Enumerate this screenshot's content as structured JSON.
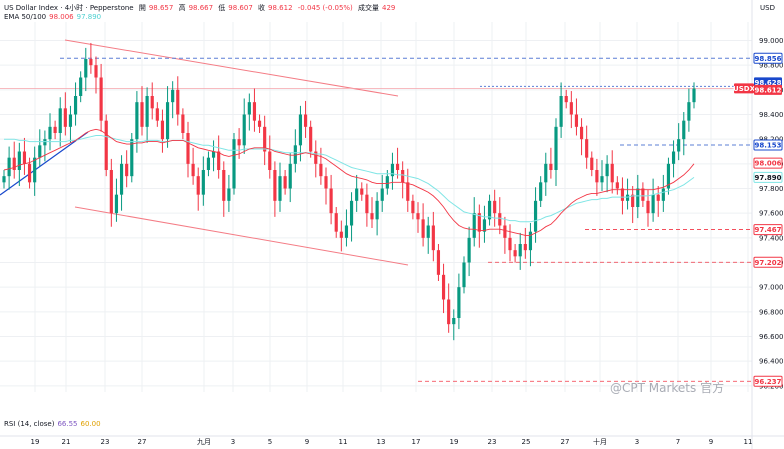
{
  "header": {
    "symbol": "US Dollar Index · 4小时 · Pepperstone",
    "o_label": "開",
    "o": "98.657",
    "h_label": "高",
    "h": "98.667",
    "l_label": "低",
    "l": "98.607",
    "c_label": "收",
    "c": "98.612",
    "chg": "-0.045 (-0.05%)",
    "vol_label": "成交量",
    "vol": "429",
    "ema_label": "EMA 50/100",
    "ema50": "98.006",
    "ema100": "97.890"
  },
  "rsi": {
    "label": "RSI (14, close)",
    "v1": "66.55",
    "v2": "60.00"
  },
  "currency": "USD",
  "watermark": "@CPT Markets 官方",
  "colors": {
    "up": "#089981",
    "down": "#f23645",
    "ema50": "#f23645",
    "ema100": "#7fe5e5",
    "blue": "#1848cc",
    "grid": "#eef0f3"
  },
  "chart_data": {
    "type": "candlestick",
    "ylim": [
      96.15,
      99.15
    ],
    "y_ticks": [
      "99.000",
      "98.800",
      "98.600",
      "98.400",
      "98.200",
      "98.000",
      "97.800",
      "97.600",
      "97.400",
      "97.200",
      "97.000",
      "96.800",
      "96.600",
      "96.400",
      "96.200"
    ],
    "y_tick_values": [
      99.0,
      98.8,
      98.6,
      98.4,
      98.2,
      98.0,
      97.8,
      97.6,
      97.4,
      97.2,
      97.0,
      96.8,
      96.6,
      96.4,
      96.2
    ],
    "x_ticks": [
      "19",
      "21",
      "23",
      "27",
      "九月",
      "3",
      "5",
      "9",
      "11",
      "13",
      "17",
      "19",
      "23",
      "25",
      "27",
      "十月",
      "3",
      "7",
      "9",
      "11"
    ],
    "price_tags": [
      {
        "text": "98.856",
        "value": 98.856,
        "style": "blue-dash"
      },
      {
        "text": "98.628",
        "value": 98.628,
        "style": "blue-fill"
      },
      {
        "text": "USDX",
        "value": 98.612,
        "style": "symbol"
      },
      {
        "text": "98.612",
        "value": 98.612,
        "style": "red-fill"
      },
      {
        "text": "98.153",
        "value": 98.153,
        "style": "blue-dash"
      },
      {
        "text": "98.006",
        "value": 98.006,
        "style": "ema-red"
      },
      {
        "text": "97.890",
        "value": 97.89,
        "style": "ema-cyan"
      },
      {
        "text": "97.467",
        "value": 97.467,
        "style": "red-dash"
      },
      {
        "text": "97.202",
        "value": 97.202,
        "style": "red-dash"
      },
      {
        "text": "96.237",
        "value": 96.237,
        "style": "red-dash"
      }
    ],
    "candles_close": [
      97.9,
      98.05,
      97.95,
      98.1,
      98.0,
      97.85,
      98.05,
      98.15,
      98.2,
      98.3,
      98.25,
      98.45,
      98.3,
      98.4,
      98.55,
      98.7,
      98.85,
      98.8,
      98.7,
      98.35,
      97.95,
      97.6,
      97.75,
      98.0,
      97.9,
      98.2,
      98.5,
      98.3,
      98.55,
      98.45,
      98.35,
      98.2,
      98.5,
      98.6,
      98.4,
      98.25,
      98.0,
      97.9,
      97.75,
      97.95,
      98.05,
      98.1,
      97.95,
      97.7,
      97.8,
      98.2,
      98.15,
      98.4,
      98.5,
      98.35,
      98.3,
      98.1,
      97.95,
      97.7,
      97.9,
      97.8,
      98.0,
      98.15,
      98.4,
      98.3,
      98.1,
      98.0,
      97.9,
      97.8,
      97.6,
      97.45,
      97.4,
      97.5,
      97.7,
      97.8,
      97.75,
      97.6,
      97.55,
      97.7,
      97.8,
      97.9,
      98.0,
      97.95,
      97.85,
      97.7,
      97.6,
      97.55,
      97.4,
      97.5,
      97.3,
      97.1,
      96.9,
      96.7,
      96.75,
      97.0,
      97.2,
      97.4,
      97.6,
      97.45,
      97.55,
      97.7,
      97.6,
      97.5,
      97.4,
      97.3,
      97.25,
      97.35,
      97.3,
      97.45,
      97.7,
      97.85,
      98.0,
      97.95,
      98.3,
      98.55,
      98.5,
      98.4,
      98.3,
      98.2,
      98.05,
      97.95,
      97.85,
      97.9,
      98.0,
      97.85,
      97.8,
      97.7,
      97.75,
      97.65,
      97.8,
      97.7,
      97.6,
      97.75,
      97.7,
      97.8,
      98.0,
      98.1,
      98.2,
      98.35,
      98.5,
      98.61
    ],
    "ema50": [
      97.95,
      97.96,
      97.97,
      97.99,
      98.0,
      98.01,
      98.03,
      98.05,
      98.07,
      98.09,
      98.11,
      98.13,
      98.15,
      98.17,
      98.19,
      98.22,
      98.25,
      98.27,
      98.28,
      98.27,
      98.24,
      98.21,
      98.18,
      98.17,
      98.16,
      98.16,
      98.17,
      98.17,
      98.18,
      98.18,
      98.18,
      98.17,
      98.18,
      98.19,
      98.19,
      98.19,
      98.17,
      98.15,
      98.13,
      98.12,
      98.11,
      98.1,
      98.09,
      98.07,
      98.06,
      98.07,
      98.08,
      98.1,
      98.12,
      98.13,
      98.13,
      98.13,
      98.12,
      98.1,
      98.09,
      98.08,
      98.07,
      98.07,
      98.08,
      98.09,
      98.08,
      98.07,
      98.06,
      98.04,
      98.01,
      97.98,
      97.95,
      97.92,
      97.9,
      97.89,
      97.88,
      97.87,
      97.85,
      97.84,
      97.84,
      97.84,
      97.85,
      97.85,
      97.85,
      97.84,
      97.83,
      97.81,
      97.79,
      97.77,
      97.74,
      97.7,
      97.65,
      97.59,
      97.54,
      97.5,
      97.48,
      97.47,
      97.47,
      97.46,
      97.46,
      97.47,
      97.47,
      97.47,
      97.46,
      97.45,
      97.44,
      97.43,
      97.42,
      97.42,
      97.44,
      97.46,
      97.49,
      97.51,
      97.55,
      97.6,
      97.64,
      97.68,
      97.71,
      97.73,
      97.75,
      97.76,
      97.76,
      97.77,
      97.78,
      97.79,
      97.79,
      97.79,
      97.79,
      97.79,
      97.79,
      97.79,
      97.79,
      97.79,
      97.8,
      97.81,
      97.83,
      97.85,
      97.88,
      97.91,
      97.95,
      98.0
    ],
    "ema100": [
      98.2,
      98.2,
      98.2,
      98.19,
      98.19,
      98.18,
      98.18,
      98.18,
      98.18,
      98.18,
      98.18,
      98.18,
      98.18,
      98.19,
      98.19,
      98.2,
      98.21,
      98.22,
      98.23,
      98.23,
      98.22,
      98.21,
      98.2,
      98.19,
      98.18,
      98.18,
      98.18,
      98.18,
      98.19,
      98.19,
      98.19,
      98.18,
      98.18,
      98.19,
      98.19,
      98.19,
      98.18,
      98.17,
      98.16,
      98.15,
      98.15,
      98.14,
      98.13,
      98.12,
      98.11,
      98.11,
      98.11,
      98.12,
      98.12,
      98.12,
      98.12,
      98.12,
      98.12,
      98.11,
      98.1,
      98.09,
      98.09,
      98.09,
      98.09,
      98.09,
      98.09,
      98.08,
      98.08,
      98.07,
      98.05,
      98.03,
      98.01,
      97.99,
      97.97,
      97.96,
      97.95,
      97.94,
      97.93,
      97.92,
      97.92,
      97.92,
      97.92,
      97.91,
      97.91,
      97.9,
      97.89,
      97.88,
      97.86,
      97.84,
      97.81,
      97.78,
      97.74,
      97.7,
      97.67,
      97.64,
      97.61,
      97.6,
      97.59,
      97.58,
      97.57,
      97.57,
      97.56,
      97.56,
      97.55,
      97.54,
      97.54,
      97.53,
      97.53,
      97.53,
      97.54,
      97.55,
      97.57,
      97.58,
      97.6,
      97.62,
      97.64,
      97.66,
      97.68,
      97.69,
      97.7,
      97.71,
      97.71,
      97.72,
      97.72,
      97.73,
      97.73,
      97.73,
      97.73,
      97.74,
      97.74,
      97.74,
      97.74,
      97.75,
      97.76,
      97.77,
      97.78,
      97.79,
      97.81,
      97.83,
      97.86,
      97.89
    ]
  }
}
